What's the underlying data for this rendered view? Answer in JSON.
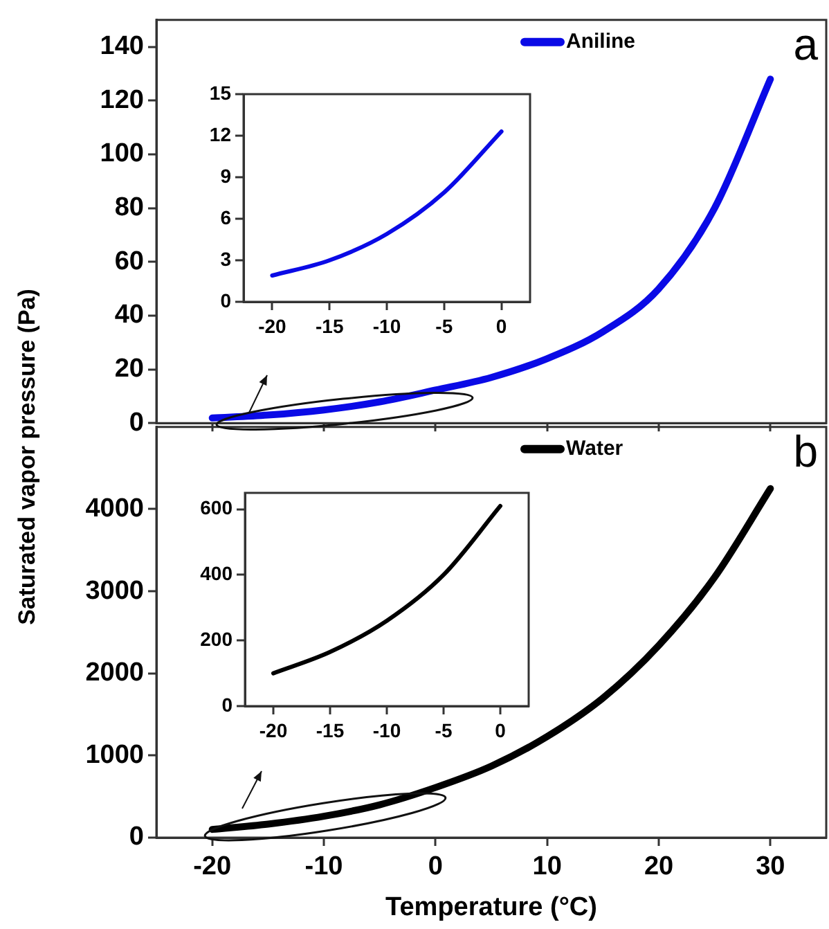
{
  "chart_data": [
    {
      "type": "line",
      "x": [
        -20,
        -15,
        -10,
        -5,
        0,
        5,
        10,
        15,
        20,
        25,
        30
      ],
      "series": [
        {
          "name": "Aniline",
          "color": "#0a0ae6",
          "values": [
            1.9,
            3.0,
            4.9,
            7.9,
            12.3,
            17,
            24,
            34,
            50,
            80,
            128
          ]
        }
      ],
      "xlim": [
        -25,
        35
      ],
      "xticks": [
        -20,
        -10,
        0,
        10,
        20,
        30
      ],
      "ylim": [
        0,
        150
      ],
      "yticks": [
        0,
        20,
        40,
        60,
        80,
        100,
        120,
        140
      ],
      "tick_labels": "y",
      "ylabel": "Saturated vapor pressure (Pa)",
      "legend": "top right",
      "annotations": [
        "a"
      ]
    },
    {
      "type": "line",
      "x": [
        -20,
        -15,
        -10,
        -5,
        0
      ],
      "series": [
        {
          "color": "#0a0ae6",
          "values": [
            1.9,
            3.0,
            4.9,
            7.9,
            12.3
          ]
        }
      ],
      "xlim": [
        -22.5,
        2.5
      ],
      "xticks": [
        -20,
        -15,
        -10,
        -5,
        0
      ],
      "ylim": [
        0,
        15
      ],
      "yticks": [
        0,
        3,
        6,
        9,
        12,
        15
      ]
    },
    {
      "type": "line",
      "x": [
        -20,
        -15,
        -10,
        -5,
        0,
        5,
        10,
        15,
        20,
        25,
        30
      ],
      "series": [
        {
          "name": "Water",
          "color": "#000000",
          "values": [
            100,
            165,
            260,
            400,
            610,
            870,
            1230,
            1700,
            2340,
            3170,
            4250
          ]
        }
      ],
      "xlim": [
        -25,
        35
      ],
      "xticks": [
        -20,
        -10,
        0,
        10,
        20,
        30
      ],
      "ylim": [
        0,
        5000
      ],
      "yticks": [
        0,
        1000,
        2000,
        3000,
        4000
      ],
      "xlabel": "Temperature (°C)",
      "legend": "top right",
      "annotations": [
        "b"
      ]
    },
    {
      "type": "line",
      "x": [
        -20,
        -15,
        -10,
        -5,
        0
      ],
      "series": [
        {
          "color": "#000000",
          "values": [
            100,
            165,
            260,
            400,
            610
          ]
        }
      ],
      "xlim": [
        -22.5,
        2.5
      ],
      "xticks": [
        -20,
        -15,
        -10,
        -5,
        0
      ],
      "ylim": [
        0,
        650
      ],
      "yticks": [
        0,
        200,
        400,
        600
      ]
    }
  ]
}
